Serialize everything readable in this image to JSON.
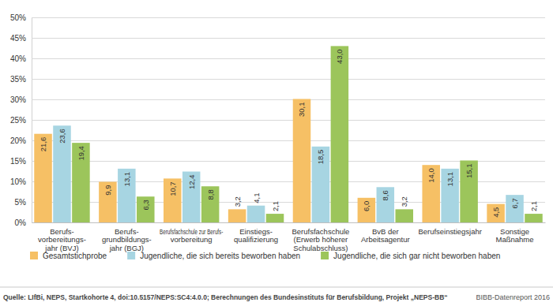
{
  "chart_data": {
    "type": "bar",
    "categories": [
      "Berufs-\nvorbereitungs-\njahr (BVJ)",
      "Berufs-\ngrundbildungs-\njahr (BGJ)",
      "Berufsfachschule zur Berufs-\nvorbereitung",
      "Einstiegs-\nqualifizierung",
      "Berufsfachschule\n(Erwerb höherer\nSchulabschluss)",
      "BvB der\nArbeitsagentur",
      "Berufseinstiegsjahr",
      "Sonstige\nMaßnahme"
    ],
    "series": [
      {
        "name": "Gesamtstichprobe",
        "color": "#f6c065",
        "values": [
          21.6,
          9.9,
          10.7,
          3.2,
          30.1,
          6.0,
          14.0,
          4.5
        ],
        "value_labels": [
          "21,6",
          "9,9",
          "10,7",
          "3,2",
          "30,1",
          "6,0",
          "14,0",
          "4,5"
        ]
      },
      {
        "name": "Jugendliche, die sich bereits beworben haben",
        "color": "#a7d5e2",
        "values": [
          23.6,
          13.1,
          12.4,
          4.1,
          18.5,
          8.6,
          13.1,
          6.7
        ],
        "value_labels": [
          "23,6",
          "13,1",
          "12,4",
          "4,1",
          "18,5",
          "8,6",
          "13,1",
          "6,7"
        ]
      },
      {
        "name": "Jugendliche, die sich gar nicht beworben haben",
        "color": "#9cc55b",
        "values": [
          19.4,
          6.3,
          8.8,
          2.1,
          43.0,
          3.2,
          15.1,
          2.1
        ],
        "value_labels": [
          "19,4",
          "6,3",
          "8,8",
          "2,1",
          "43,0",
          "3,2",
          "15,1",
          "2,1"
        ]
      }
    ],
    "ylim": [
      0,
      50
    ],
    "yticks": [
      {
        "value": 0,
        "label": "0%"
      },
      {
        "value": 5,
        "label": "5%"
      },
      {
        "value": 10,
        "label": "10%"
      },
      {
        "value": 15,
        "label": "15%"
      },
      {
        "value": 20,
        "label": "20%"
      },
      {
        "value": 25,
        "label": "25%"
      },
      {
        "value": 30,
        "label": "30%"
      },
      {
        "value": 35,
        "label": "35%"
      },
      {
        "value": 40,
        "label": "40%"
      },
      {
        "value": 45,
        "label": "45%"
      },
      {
        "value": 50,
        "label": "50%"
      }
    ],
    "grid": true,
    "data_labels": true,
    "legend": "bottom",
    "source": "Quelle: LIfBi, NEPS, Startkohorte 4, doi:10.5157/NEPS:SC4:4.0.0; Berechnungen des Bundesinstituts für Berufsbildung, Projekt „NEPS-BB“",
    "credit": "BIBB-Datenreport 2016"
  }
}
